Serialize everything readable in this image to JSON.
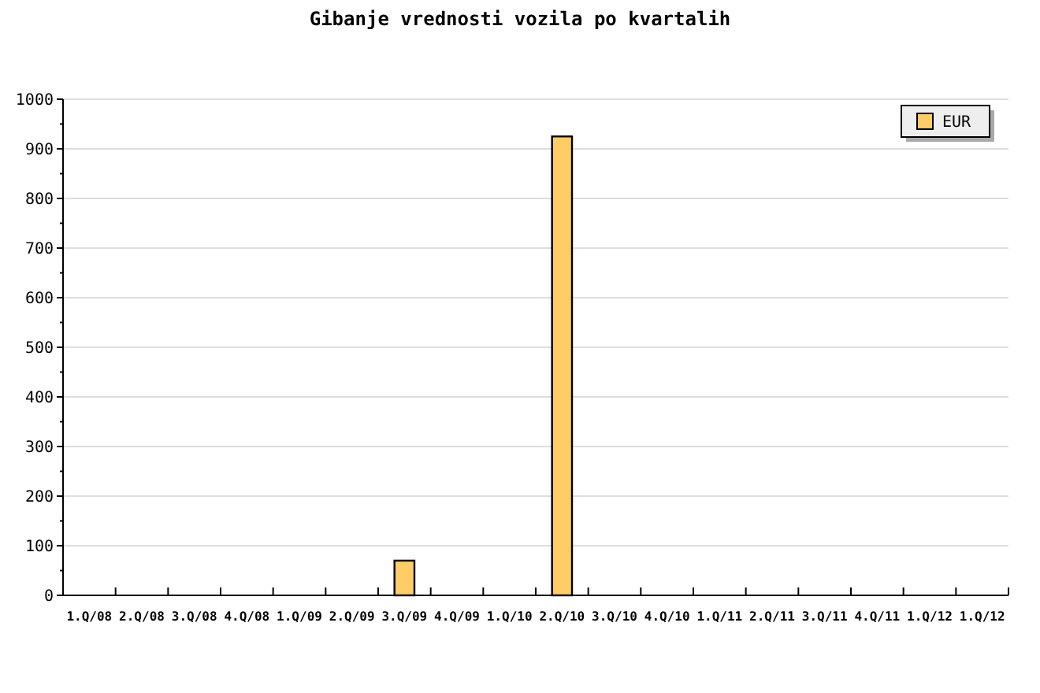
{
  "chart_data": {
    "type": "bar",
    "title": "Gibanje vrednosti vozila po kvartalih",
    "categories": [
      "1.Q/08",
      "2.Q/08",
      "3.Q/08",
      "4.Q/08",
      "1.Q/09",
      "2.Q/09",
      "3.Q/09",
      "4.Q/09",
      "1.Q/10",
      "2.Q/10",
      "3.Q/10",
      "4.Q/10",
      "1.Q/11",
      "2.Q/11",
      "3.Q/11",
      "4.Q/11",
      "1.Q/12",
      "1.Q/12"
    ],
    "series": [
      {
        "name": "EUR",
        "color": "#ffcc66",
        "values": [
          0,
          0,
          0,
          0,
          0,
          0,
          70,
          0,
          0,
          925,
          0,
          0,
          0,
          0,
          0,
          0,
          0,
          0
        ]
      }
    ],
    "ylim": [
      0,
      1000
    ],
    "yticks": [
      0,
      100,
      200,
      300,
      400,
      500,
      600,
      700,
      800,
      900,
      1000
    ],
    "grid": "y",
    "legend": "top right"
  }
}
